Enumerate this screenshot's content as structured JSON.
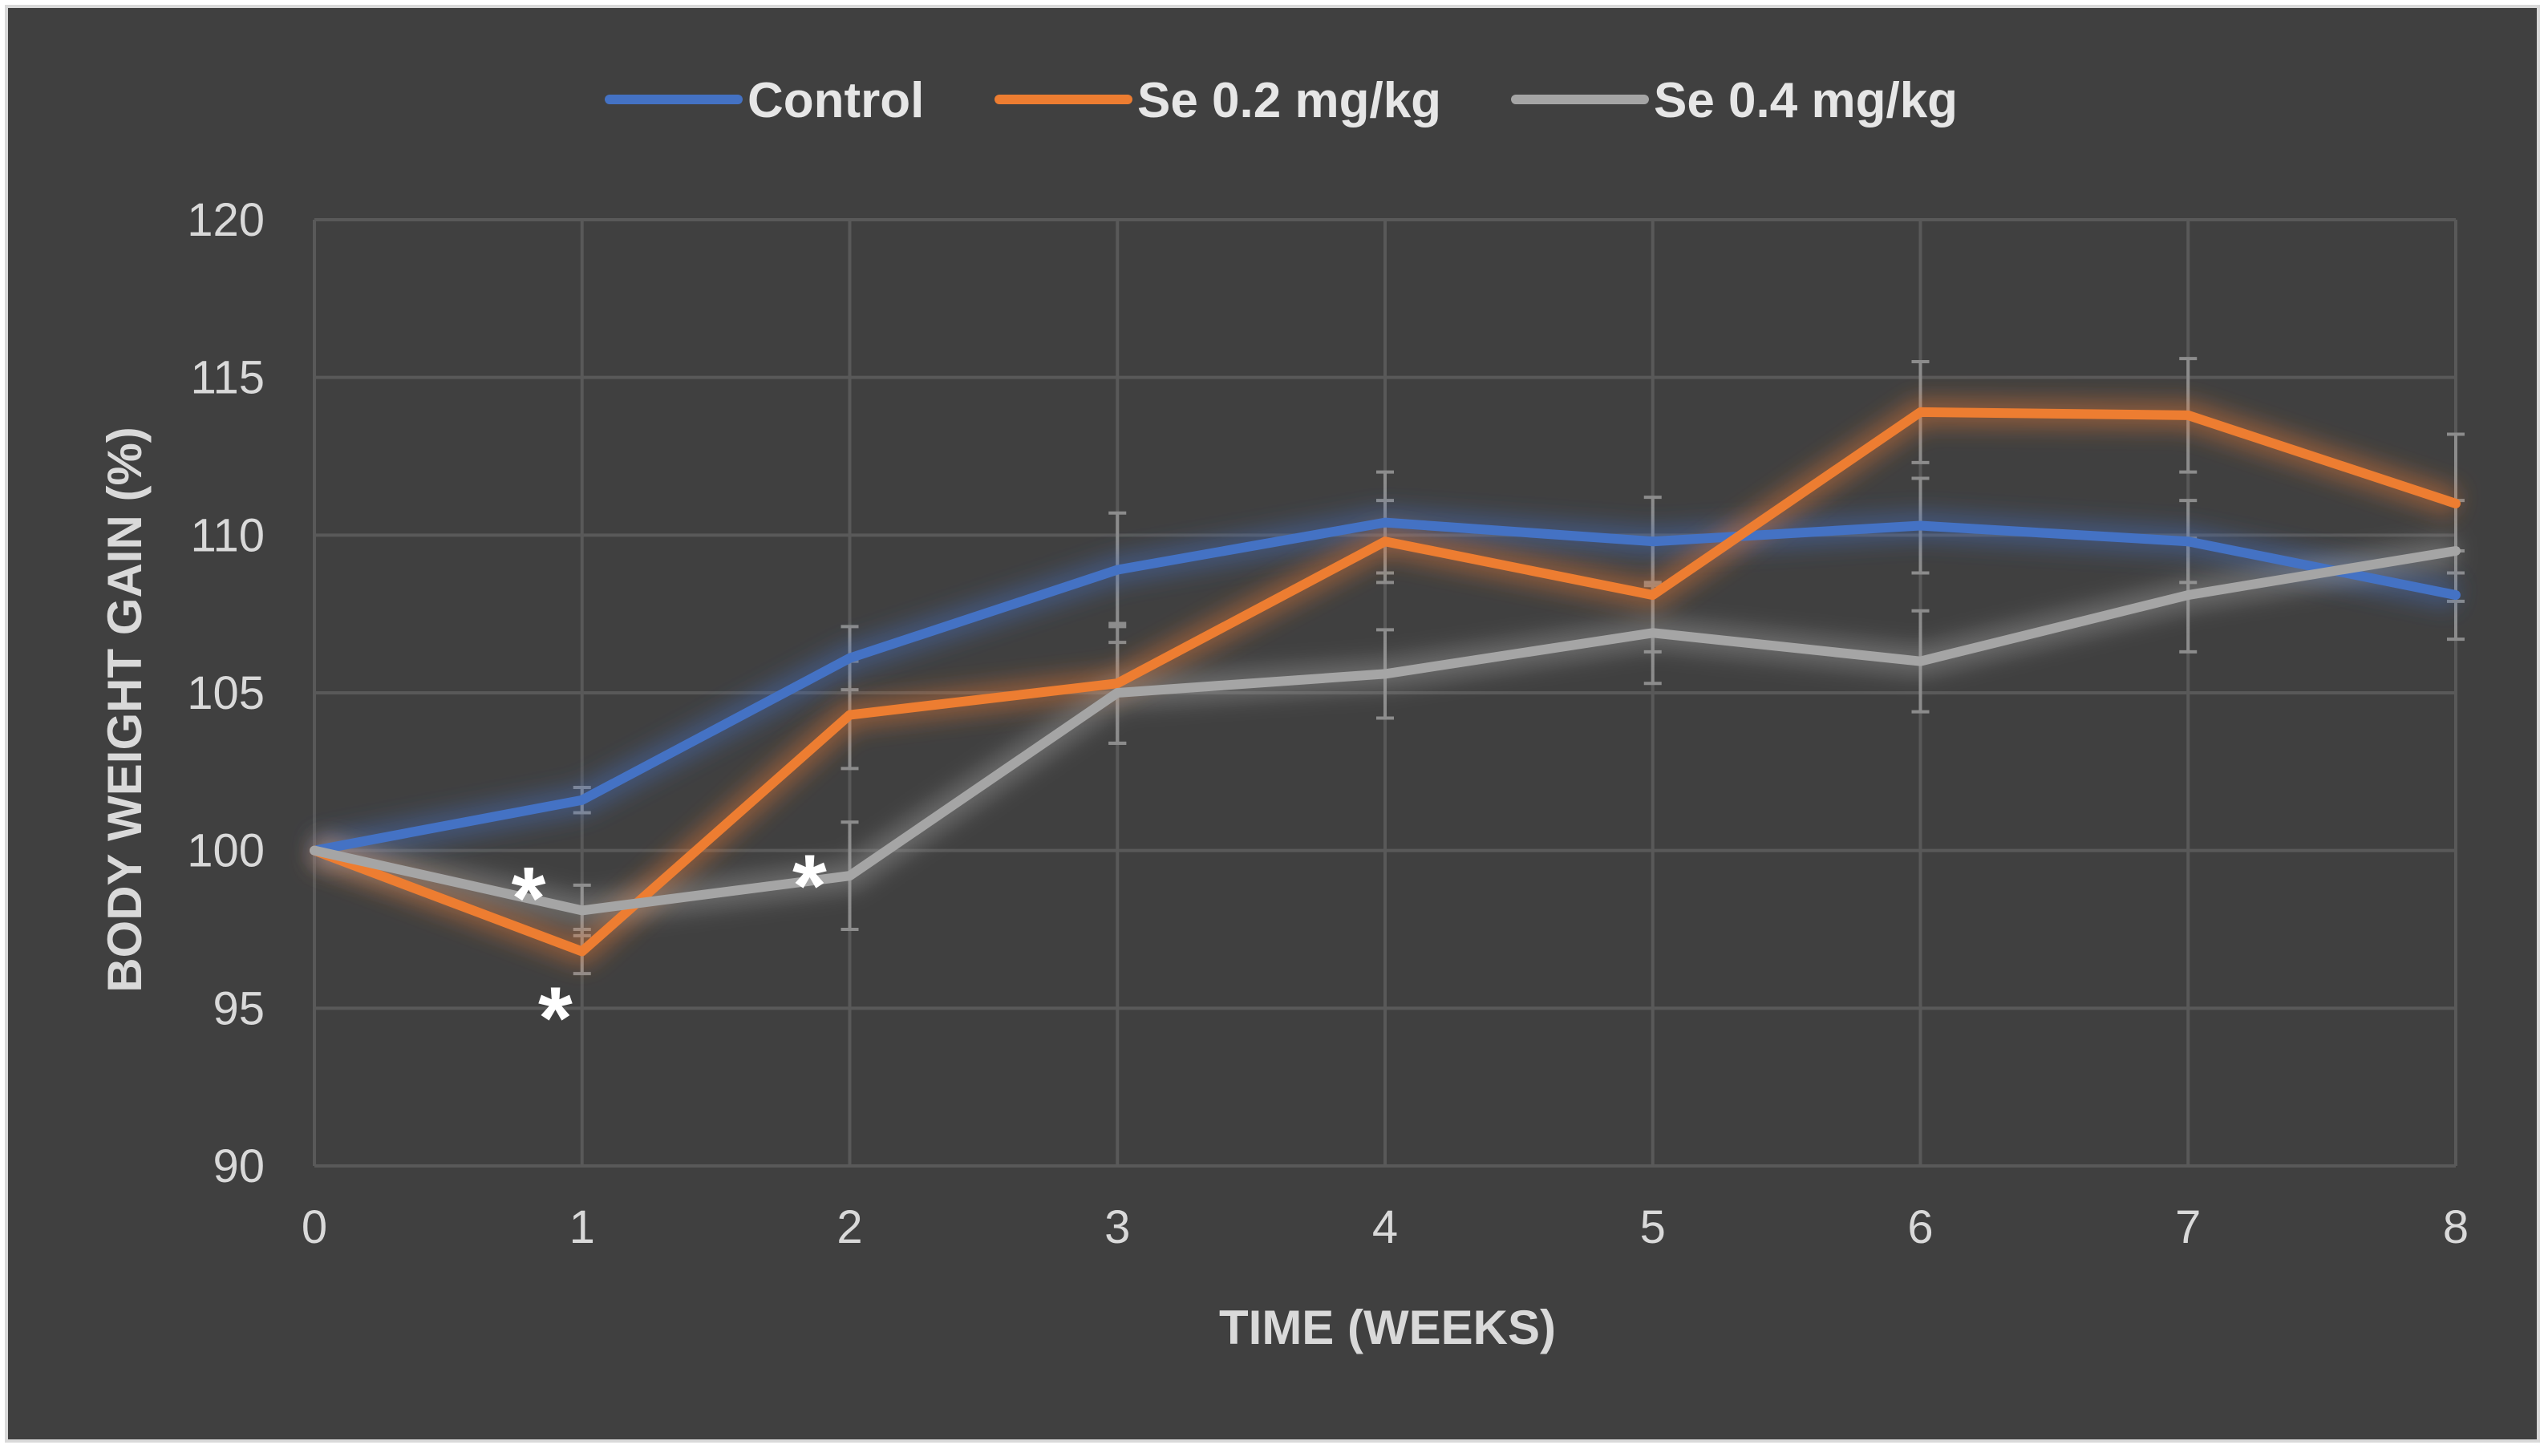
{
  "chart_data": {
    "type": "line",
    "title": "",
    "xlabel": "TIME (WEEKS)",
    "ylabel": "BODY WEIGHT GAIN  (%)",
    "x": [
      0,
      1,
      2,
      3,
      4,
      5,
      6,
      7,
      8
    ],
    "xlim": [
      0,
      8
    ],
    "ylim": [
      90,
      120
    ],
    "yticks": [
      90,
      95,
      100,
      105,
      110,
      115,
      120
    ],
    "grid": true,
    "legend_position": "top-center",
    "series": [
      {
        "name": "Control",
        "color": "#4472c4",
        "values": [
          100,
          101.6,
          106.1,
          108.9,
          110.4,
          109.8,
          110.3,
          109.8,
          108.1
        ],
        "errors": [
          0,
          0.4,
          1.0,
          1.8,
          1.6,
          1.4,
          1.5,
          1.3,
          1.4
        ]
      },
      {
        "name": "Se 0.2 mg/kg",
        "color": "#ed7d31",
        "values": [
          100,
          96.8,
          104.3,
          105.3,
          109.8,
          108.1,
          113.9,
          113.8,
          111.0
        ],
        "errors": [
          0,
          0.7,
          1.7,
          1.9,
          1.3,
          1.8,
          1.6,
          1.8,
          2.2
        ]
      },
      {
        "name": "Se 0.4 mg/kg",
        "color": "#a5a5a5",
        "values": [
          100,
          98.1,
          99.2,
          105.0,
          105.6,
          106.9,
          106.0,
          108.1,
          109.5
        ],
        "errors": [
          0,
          0.8,
          1.7,
          1.6,
          1.4,
          1.6,
          1.6,
          1.8,
          1.6
        ]
      }
    ],
    "annotations": [
      {
        "text": "*",
        "x": 0.8,
        "y": 99.3
      },
      {
        "text": "*",
        "x": 0.9,
        "y": 95.5
      },
      {
        "text": "*",
        "x": 1.85,
        "y": 99.7
      }
    ]
  }
}
